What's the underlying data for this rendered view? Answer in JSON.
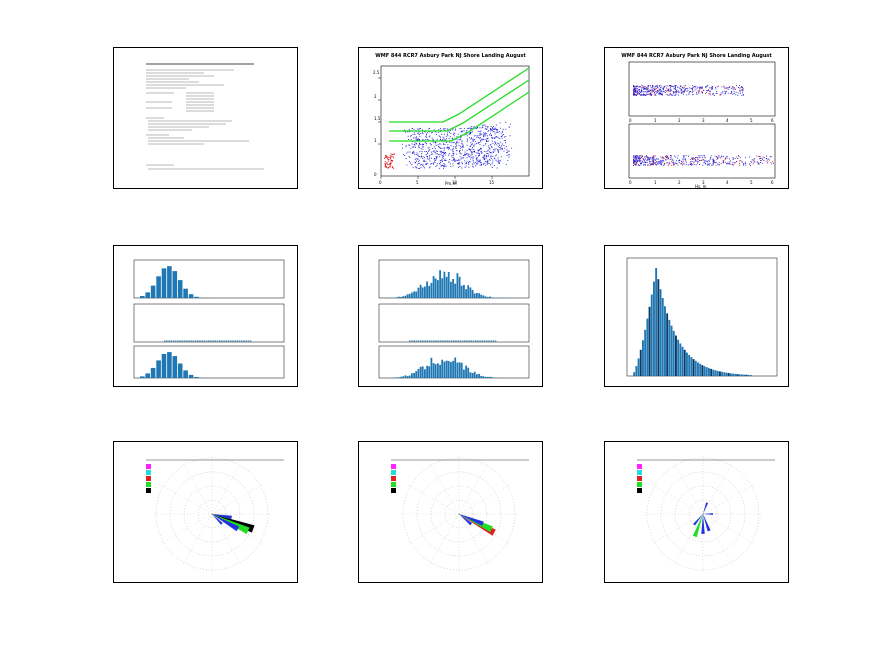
{
  "panels": {
    "p2": {
      "title": "WMF 844 RCR7 Asbury Park NJ Shore Landing August",
      "xlabel": "Pm,m"
    },
    "p3": {
      "title": "WMF 844 RCR7 Asbury Park NJ Shore Landing August",
      "xlabel": "Hs, m"
    }
  },
  "colors": {
    "scatter_blue": "#1515d8",
    "scatter_red": "#e01515",
    "contour_green": "#22dd22",
    "bar_blue": "#1f78b4",
    "bar_dark": "#0b3a66",
    "wind_green": "#22dd22",
    "wind_magenta": "#ff22ff",
    "wind_cyan": "#22dddd",
    "wind_red": "#dd2222",
    "wind_black": "#000000"
  }
}
